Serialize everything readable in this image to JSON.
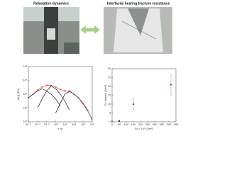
{
  "header": {
    "left_title": "Relaxation dynamics",
    "right_title": "Interfacial healing fracture resistance"
  },
  "chart_data": [
    {
      "type": "line",
      "xlabel": "τ (s)",
      "ylabel": "M(τ) (Pa)",
      "log_x": true,
      "log_y": true,
      "xlim": [
        1e-06,
        100000000.0
      ],
      "ylim": [
        1,
        100000000.0
      ],
      "xticks": [
        {
          "value": 1e-06,
          "label": "10⁻⁶"
        },
        {
          "value": 0.0001,
          "label": "10⁻⁴"
        },
        {
          "value": 0.01,
          "label": "10⁻²"
        },
        {
          "value": 1,
          "label": "10⁰"
        },
        {
          "value": 100,
          "label": "10²"
        },
        {
          "value": 10000.0,
          "label": "10⁴"
        },
        {
          "value": 1000000.0,
          "label": "10⁶"
        },
        {
          "value": 100000000.0,
          "label": "10⁸"
        }
      ],
      "yticks": [
        {
          "value": 1,
          "label": "10⁰"
        },
        {
          "value": 100,
          "label": "10²"
        },
        {
          "value": 10000.0,
          "label": "10⁴"
        },
        {
          "value": 1000000.0,
          "label": "10⁶"
        },
        {
          "value": 100000000.0,
          "label": "10⁸"
        }
      ],
      "series": [
        {
          "color": "#d62728",
          "marker": "cross",
          "x": [
            1e-06,
            1e-05,
            0.0001,
            0.001,
            0.01,
            0.1,
            1,
            10,
            100,
            1000,
            10000.0,
            100000.0,
            1000000.0,
            10000000.0
          ],
          "values": [
            3000,
            10000,
            40000,
            100000,
            200000,
            200000,
            100000,
            50000,
            30000,
            30000,
            10000,
            3000,
            500,
            50
          ]
        },
        {
          "color": "#000000",
          "marker": "none",
          "x": [
            1e-06,
            1e-05,
            0.0001,
            0.001,
            0.01,
            0.1,
            1,
            10
          ],
          "values": [
            3000,
            10000,
            30000,
            60000,
            30000,
            10000,
            2000,
            200
          ]
        },
        {
          "color": "#000000",
          "marker": "none",
          "x": [
            0.0001,
            0.001,
            0.01,
            0.1,
            1,
            10,
            100,
            1000
          ],
          "values": [
            100,
            2000,
            30000,
            150000,
            60000,
            10000,
            1000,
            50
          ]
        },
        {
          "color": "#000000",
          "marker": "none",
          "x": [
            1,
            10,
            100,
            1000,
            10000.0,
            100000.0,
            1000000.0,
            10000000.0,
            100000000.0
          ],
          "values": [
            20,
            500,
            10000,
            25000,
            10000,
            3000,
            400,
            40,
            2
          ]
        }
      ]
    },
    {
      "type": "scatter",
      "xlabel": "W × 10³ (J/m²)",
      "ylabel": "Gc healed (J/m²)",
      "xlim": [
        0,
        450
      ],
      "ylim": [
        0,
        30
      ],
      "xticks": [
        0,
        50,
        100,
        150,
        200,
        250,
        300,
        350,
        400,
        450
      ],
      "yticks": [
        0,
        5,
        10,
        15,
        20,
        25,
        30
      ],
      "x": [
        0,
        50,
        150,
        415
      ],
      "values": [
        0.3,
        0.5,
        10,
        21
      ],
      "errors": [
        0,
        0,
        3,
        6
      ],
      "colors": [
        "#2a9d8f",
        "#222222",
        "#3d6b6b",
        "#c0392b"
      ]
    }
  ]
}
